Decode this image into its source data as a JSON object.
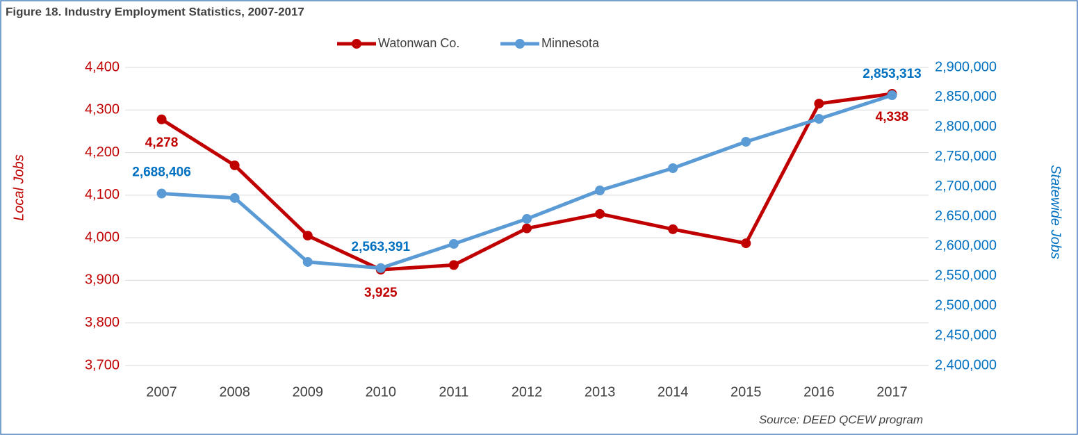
{
  "chart_data": {
    "type": "line",
    "title": "Figure 18. Industry Employment Statistics, 2007-2017",
    "ylabel": "Local Jobs",
    "y2label": "Statewide Jobs",
    "source": "Source: DEED QCEW program",
    "categories": [
      "2007",
      "2008",
      "2009",
      "2010",
      "2011",
      "2012",
      "2013",
      "2014",
      "2015",
      "2016",
      "2017"
    ],
    "series": [
      {
        "name": "Watonwan Co.",
        "color": "#c00000",
        "axis": "y",
        "values": [
          4278,
          4170,
          4005,
          3925,
          3936,
          4022,
          4056,
          4020,
          3987,
          4315,
          4338
        ],
        "value_labels": [
          "4,278",
          null,
          null,
          "3,925",
          null,
          null,
          null,
          null,
          null,
          null,
          "4,338"
        ]
      },
      {
        "name": "Minnesota",
        "color": "#5b9bd5",
        "axis": "y2",
        "values": [
          2688406,
          2681000,
          2573700,
          2563391,
          2604000,
          2645900,
          2693700,
          2731000,
          2775300,
          2813750,
          2853313
        ],
        "value_labels": [
          "2,688,406",
          null,
          null,
          "2,563,391",
          null,
          null,
          null,
          null,
          null,
          null,
          "2,853,313"
        ]
      }
    ],
    "ylim": [
      3700,
      4400
    ],
    "yticks": [
      {
        "value": 3700,
        "label": "3,700"
      },
      {
        "value": 3800,
        "label": "3,800"
      },
      {
        "value": 3900,
        "label": "3,900"
      },
      {
        "value": 4000,
        "label": "4,000"
      },
      {
        "value": 4100,
        "label": "4,100"
      },
      {
        "value": 4200,
        "label": "4,200"
      },
      {
        "value": 4300,
        "label": "4,300"
      },
      {
        "value": 4400,
        "label": "4,400"
      }
    ],
    "y2lim": [
      2400000,
      2900000
    ],
    "y2ticks": [
      {
        "value": 2400000,
        "label": "2,400,000"
      },
      {
        "value": 2450000,
        "label": "2,450,000"
      },
      {
        "value": 2500000,
        "label": "2,500,000"
      },
      {
        "value": 2550000,
        "label": "2,550,000"
      },
      {
        "value": 2600000,
        "label": "2,600,000"
      },
      {
        "value": 2650000,
        "label": "2,650,000"
      },
      {
        "value": 2700000,
        "label": "2,700,000"
      },
      {
        "value": 2750000,
        "label": "2,750,000"
      },
      {
        "value": 2800000,
        "label": "2,800,000"
      },
      {
        "value": 2850000,
        "label": "2,850,000"
      },
      {
        "value": 2900000,
        "label": "2,900,000"
      }
    ],
    "grid": true,
    "legend": "top"
  }
}
